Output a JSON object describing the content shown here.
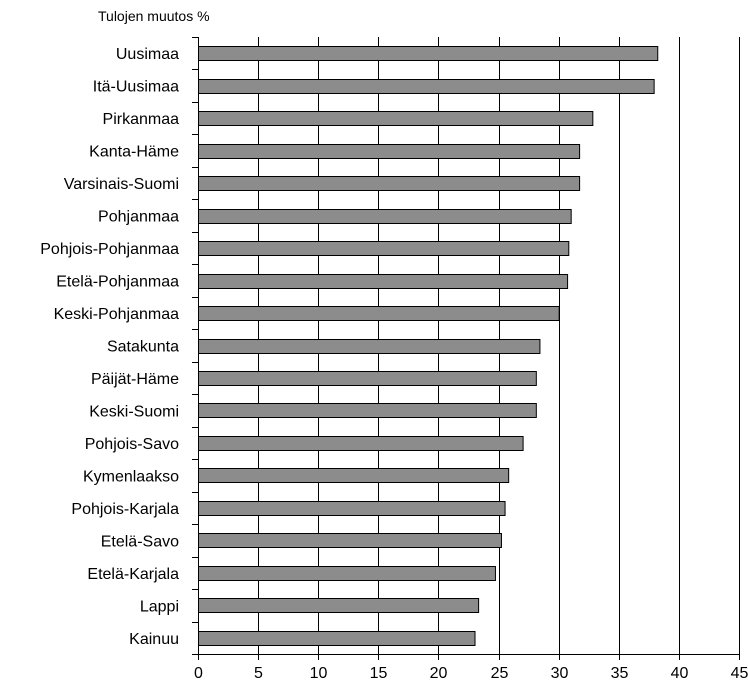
{
  "chart_data": {
    "type": "bar",
    "orientation": "horizontal",
    "title": "",
    "ylabel": "Tulojen muutos %",
    "xlabel": "",
    "xlim": [
      0,
      45
    ],
    "xticks": [
      0,
      5,
      10,
      15,
      20,
      25,
      30,
      35,
      40,
      45
    ],
    "grid": "vertical",
    "bar_color": "#8c8c8c",
    "categories": [
      "Uusimaa",
      "Itä-Uusimaa",
      "Pirkanmaa",
      "Kanta-Häme",
      "Varsinais-Suomi",
      "Pohjanmaa",
      "Pohjois-Pohjanmaa",
      "Etelä-Pohjanmaa",
      "Keski-Pohjanmaa",
      "Satakunta",
      "Päijät-Häme",
      "Keski-Suomi",
      "Pohjois-Savo",
      "Kymenlaakso",
      "Pohjois-Karjala",
      "Etelä-Savo",
      "Etelä-Karjala",
      "Lappi",
      "Kainuu"
    ],
    "values": [
      38.2,
      37.9,
      32.8,
      31.7,
      31.7,
      31.0,
      30.8,
      30.7,
      30.0,
      28.4,
      28.1,
      28.1,
      27.0,
      25.8,
      25.5,
      25.2,
      24.7,
      23.3,
      23.0
    ]
  }
}
